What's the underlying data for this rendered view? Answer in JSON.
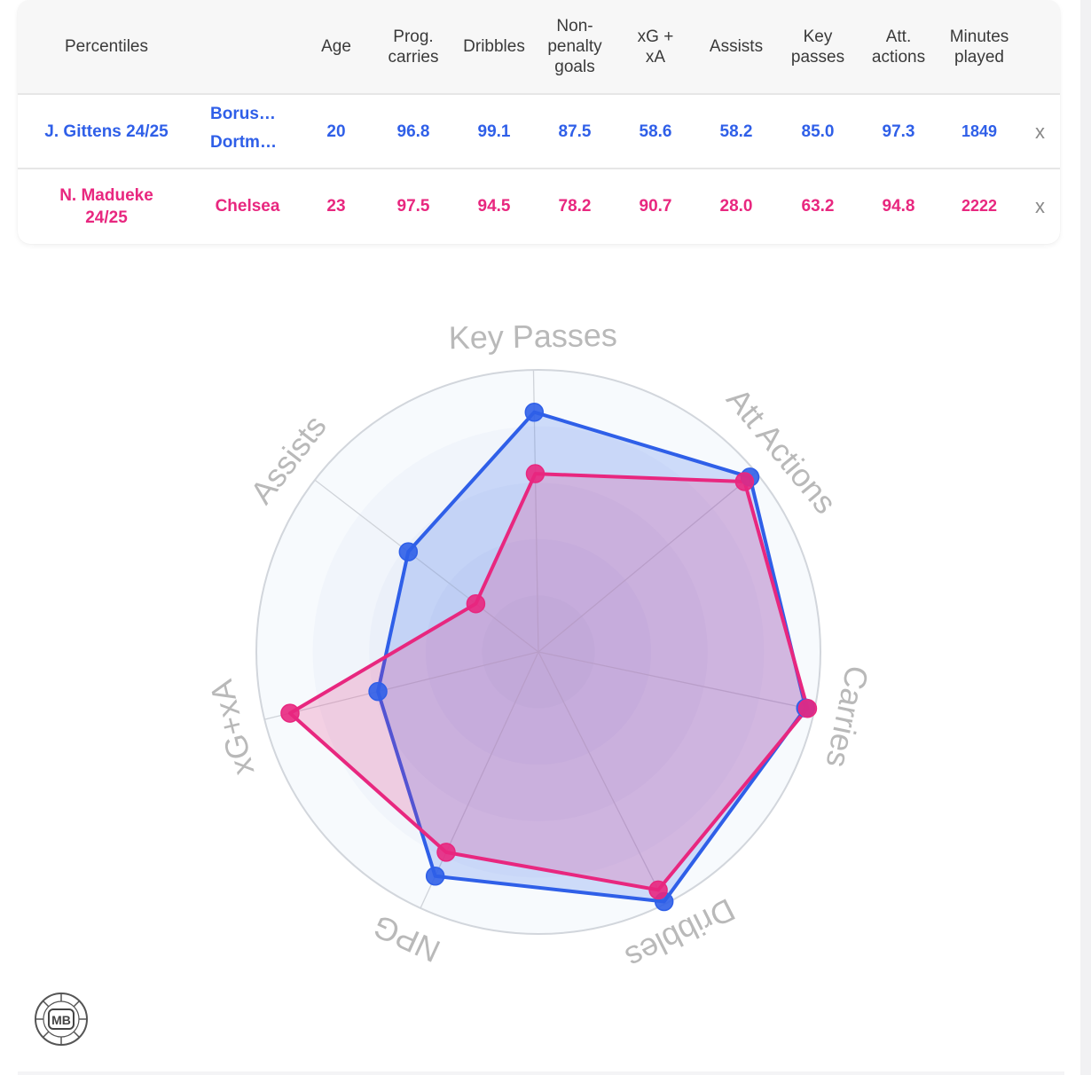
{
  "table": {
    "headers": [
      "Percentiles",
      "",
      "Age",
      "Prog. carries",
      "Dribbles",
      "Non-penalty goals",
      "xG + xA",
      "Assists",
      "Key passes",
      "Att. actions",
      "Minutes played"
    ],
    "rows": [
      {
        "name": "J. Gittens 24/25",
        "club": [
          "Borus…",
          "Dortm…"
        ],
        "age": "20",
        "prog_carries": "96.8",
        "dribbles": "99.1",
        "npg": "87.5",
        "xg_xa": "58.6",
        "assists": "58.2",
        "key_passes": "85.0",
        "att_actions": "97.3",
        "minutes": "1849",
        "remove": "x"
      },
      {
        "name": "N. Madueke 24/25",
        "club": [
          "Chelsea"
        ],
        "age": "23",
        "prog_carries": "97.5",
        "dribbles": "94.5",
        "npg": "78.2",
        "xg_xa": "90.7",
        "assists": "28.0",
        "key_passes": "63.2",
        "att_actions": "94.8",
        "minutes": "2222",
        "remove": "x"
      }
    ]
  },
  "chart_data": {
    "type": "radar",
    "axes": [
      "Key Passes",
      "Att Actions",
      "Carries",
      "Dribbles",
      "NPG",
      "xG+xA",
      "Assists"
    ],
    "range": [
      0,
      100
    ],
    "series": [
      {
        "name": "J. Gittens 24/25",
        "color": "#2f5fe8",
        "values": [
          85.0,
          97.3,
          96.8,
          99.1,
          87.5,
          58.6,
          58.2
        ]
      },
      {
        "name": "N. Madueke 24/25",
        "color": "#e8277f",
        "values": [
          63.2,
          94.8,
          97.5,
          94.5,
          78.2,
          90.7,
          28.0
        ]
      }
    ]
  },
  "logo": {
    "text": "MB"
  }
}
